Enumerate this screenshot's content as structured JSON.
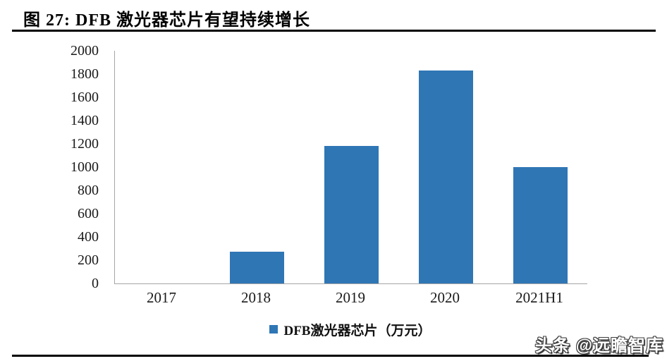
{
  "page": {
    "title": "图 27: DFB 激光器芯片有望持续增长",
    "watermark": "头条 @远瞻智库"
  },
  "chart_data": {
    "type": "bar",
    "title": "图 27: DFB 激光器芯片有望持续增长",
    "categories": [
      "2017",
      "2018",
      "2019",
      "2020",
      "2021H1"
    ],
    "values": [
      0,
      270,
      1180,
      1830,
      1000
    ],
    "series_name": "DFB激光器芯片（万元）",
    "legend": [
      "DFB激光器芯片（万元）"
    ],
    "legend_position": "bottom",
    "xlabel": "",
    "ylabel": "",
    "ylim": [
      0,
      2000
    ],
    "ytick_step": 200,
    "grid": false,
    "colors": {
      "bar": "#2F76B5",
      "axis": "#A6A6A6",
      "text": "#1a1a1a"
    }
  }
}
